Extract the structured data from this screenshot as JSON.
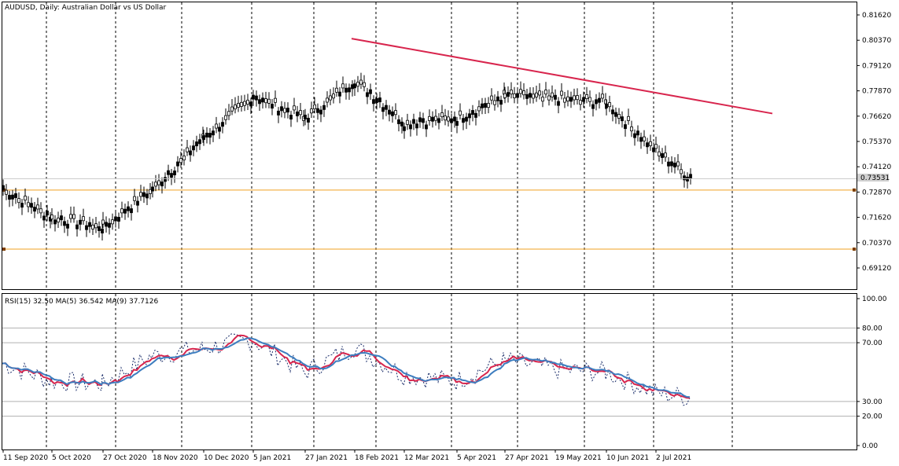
{
  "main_pane": {
    "title": "AUDUSD, Daily:  Australian Dollar vs US Dollar",
    "price_labels": [
      "0.81620",
      "0.80370",
      "0.79120",
      "0.77870",
      "0.76620",
      "0.75370",
      "0.74120",
      "0.72870",
      "0.71620",
      "0.70370",
      "0.69120"
    ],
    "current_price": "0.73531",
    "colors": {
      "trendline": "#d8254d",
      "support": "#f0a020",
      "bar": "#000000",
      "grid": "#000000"
    }
  },
  "rsi_pane": {
    "title": "RSI(15) 32.50 MA(5) 36.542 MA(9) 37.7126",
    "level_labels": [
      "100.00",
      "80.00",
      "70.00",
      "30.00",
      "20.00",
      "0.00"
    ],
    "colors": {
      "rsi": "#1c2f6b",
      "ma5": "#d8254d",
      "ma9": "#3d7dbf",
      "levels": "#c0c0c0"
    }
  },
  "time_axis": {
    "labels": [
      "11 Sep 2020",
      "5 Oct 2020",
      "27 Oct 2020",
      "18 Nov 2020",
      "10 Dec 2020",
      "5 Jan 2021",
      "27 Jan 2021",
      "18 Feb 2021",
      "12 Mar 2021",
      "5 Apr 2021",
      "27 Apr 2021",
      "19 May 2021",
      "10 Jun 2021",
      "2 Jul 2021"
    ]
  },
  "chart_data": {
    "type": "candlestick",
    "series": [
      {
        "name": "AUDUSD",
        "points": [
          {
            "x": "11 Sep 2020",
            "close": 0.73
          },
          {
            "x": "5 Oct 2020",
            "close": 0.716
          },
          {
            "x": "27 Oct 2020",
            "close": 0.711
          },
          {
            "x": "18 Nov 2020",
            "close": 0.73
          },
          {
            "x": "10 Dec 2020",
            "close": 0.755
          },
          {
            "x": "5 Jan 2021",
            "close": 0.776
          },
          {
            "x": "27 Jan 2021",
            "close": 0.765
          },
          {
            "x": "18 Feb 2021",
            "close": 0.784
          },
          {
            "x": "12 Mar 2021",
            "close": 0.763
          },
          {
            "x": "5 Apr 2021",
            "close": 0.765
          },
          {
            "x": "27 Apr 2021",
            "close": 0.776
          },
          {
            "x": "19 May 2021",
            "close": 0.775
          },
          {
            "x": "10 Jun 2021",
            "close": 0.773
          },
          {
            "x": "2 Jul 2021",
            "close": 0.749
          },
          {
            "x": "end",
            "close": 0.7353
          }
        ]
      },
      {
        "name": "RSI(15)",
        "points": [
          {
            "x": "11 Sep 2020",
            "y": 56
          },
          {
            "x": "5 Oct 2020",
            "y": 44
          },
          {
            "x": "27 Oct 2020",
            "y": 42
          },
          {
            "x": "18 Nov 2020",
            "y": 61
          },
          {
            "x": "10 Dec 2020",
            "y": 66
          },
          {
            "x": "5 Jan 2021",
            "y": 72
          },
          {
            "x": "27 Jan 2021",
            "y": 50
          },
          {
            "x": "18 Feb 2021",
            "y": 67
          },
          {
            "x": "12 Mar 2021",
            "y": 48
          },
          {
            "x": "5 Apr 2021",
            "y": 44
          },
          {
            "x": "27 Apr 2021",
            "y": 58
          },
          {
            "x": "19 May 2021",
            "y": 52
          },
          {
            "x": "10 Jun 2021",
            "y": 50
          },
          {
            "x": "2 Jul 2021",
            "y": 36
          },
          {
            "x": "end",
            "y": 32.5
          }
        ]
      }
    ],
    "y_range_price": [
      0.685,
      0.8225
    ],
    "y_range_rsi": [
      0,
      100
    ],
    "trendline": {
      "from": {
        "x": "13 Feb 2021",
        "y": 0.8045
      },
      "to": {
        "x": "1 Aug 2021",
        "y": 0.7675
      }
    },
    "horizontal_lines": [
      0.7297,
      0.7005
    ],
    "rsi_levels": [
      80,
      70,
      30,
      20
    ]
  }
}
